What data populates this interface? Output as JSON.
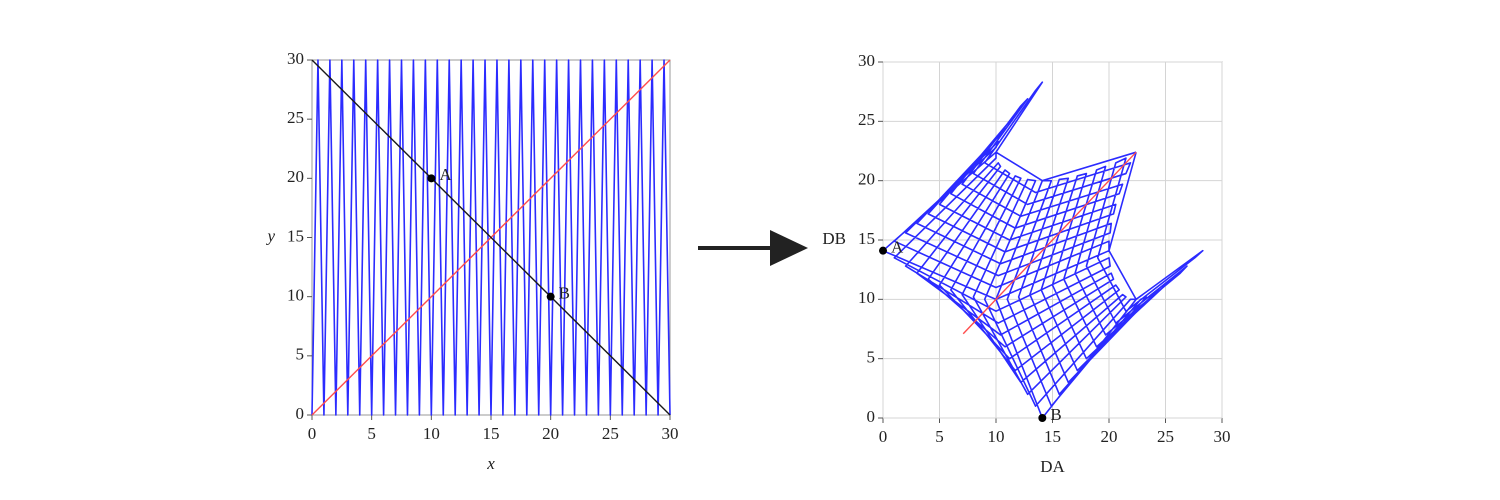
{
  "chart_data": [
    {
      "type": "line",
      "x_label": "x",
      "y_label": "y",
      "italic_labels": true,
      "xlim": [
        0,
        30
      ],
      "ylim": [
        0,
        30
      ],
      "xticks": [
        0,
        5,
        10,
        15,
        20,
        25,
        30
      ],
      "yticks": [
        0,
        5,
        10,
        15,
        20,
        25,
        30
      ],
      "grid": false,
      "series": [
        {
          "color": "#2b2bff",
          "x": [
            0,
            0.5,
            1,
            1.5,
            2,
            2.5,
            3,
            3.5,
            4,
            4.5,
            5,
            5.5,
            6,
            6.5,
            7,
            7.5,
            8,
            8.5,
            9,
            9.5,
            10,
            10.5,
            11,
            11.5,
            12,
            12.5,
            13,
            13.5,
            14,
            14.5,
            15,
            15.5,
            16,
            16.5,
            17,
            17.5,
            18,
            18.5,
            19,
            19.5,
            20,
            20.5,
            21,
            21.5,
            22,
            22.5,
            23,
            23.5,
            24,
            24.5,
            25,
            25.5,
            26,
            26.5,
            27,
            27.5,
            28,
            28.5,
            29,
            29.5,
            30
          ],
          "values": [
            0,
            30,
            0,
            30,
            0,
            30,
            0,
            30,
            0,
            30,
            0,
            30,
            0,
            30,
            0,
            30,
            0,
            30,
            0,
            30,
            0,
            30,
            0,
            30,
            0,
            30,
            0,
            30,
            0,
            30,
            0,
            30,
            0,
            30,
            0,
            30,
            0,
            30,
            0,
            30,
            0,
            30,
            0,
            30,
            0,
            30,
            0,
            30,
            0,
            30,
            0,
            30,
            0,
            30,
            0,
            30,
            0,
            30,
            0,
            30,
            0
          ]
        },
        {
          "color": "#ff4d4d",
          "x": [
            0,
            30
          ],
          "values": [
            0,
            30
          ]
        },
        {
          "color": "#1a1a1a",
          "x": [
            0,
            30
          ],
          "values": [
            30,
            0
          ]
        }
      ],
      "points": [
        {
          "label": "A",
          "x": 10,
          "y": 20
        },
        {
          "label": "B",
          "x": 20,
          "y": 10
        }
      ]
    },
    {
      "type": "line",
      "x_label": "DA",
      "y_label": "DB",
      "italic_labels": false,
      "xlim": [
        0,
        30
      ],
      "ylim": [
        0,
        30
      ],
      "xticks": [
        0,
        5,
        10,
        15,
        20,
        25,
        30
      ],
      "yticks": [
        0,
        5,
        10,
        15,
        20,
        25,
        30
      ],
      "grid": true,
      "series": [
        {
          "color": "#2b2bff",
          "x": [
            22.4,
            14.1,
            10,
            14.1,
            13.5,
            9,
            13.5,
            21.9,
            21.5,
            12.8,
            8,
            12.8,
            12.2,
            7,
            12.2,
            21.2,
            20.9,
            11.7,
            6,
            11.7,
            11.2,
            5,
            11.2,
            20.6,
            20.4,
            10.8,
            4,
            10.8,
            10.4,
            3,
            10.4,
            20.2,
            20.1,
            10.2,
            2,
            10.2,
            10,
            1,
            10,
            20,
            20,
            10,
            0,
            10,
            10,
            1,
            10,
            20,
            20.1,
            10.2,
            2,
            10.2,
            10.4,
            3,
            10.4,
            20.2,
            20.4,
            10.8,
            4,
            10.8,
            11.2,
            5,
            11.2,
            20.6,
            20.9,
            11.7,
            6,
            11.7,
            12.2,
            7,
            12.2,
            21.2,
            21.5,
            12.8,
            8,
            12.8,
            13.5,
            9,
            13.5,
            21.9,
            22.4,
            14.1,
            10,
            14.1,
            14.9,
            11,
            14.9,
            22.8,
            23.3,
            15.6,
            12,
            15.6,
            16.4,
            13,
            16.4,
            23.9,
            24.4,
            17.2,
            14,
            17.2,
            18,
            15,
            18,
            25,
            25.6,
            18.9,
            16,
            18.9,
            19.7,
            17,
            19.7,
            26.3,
            26.9,
            20.6,
            18,
            20.6,
            21.5,
            19,
            21.5,
            27.6,
            28.3,
            22.4,
            20,
            22.4
          ],
          "values": [
            22.4,
            20,
            22.4,
            28.3,
            27.6,
            21.5,
            19,
            21.5,
            20.6,
            18,
            20.6,
            26.9,
            26.3,
            19.7,
            17,
            19.7,
            18.9,
            16,
            18.9,
            25.6,
            25,
            18,
            15,
            18,
            17.2,
            14,
            17.2,
            24.4,
            23.9,
            16.4,
            13,
            16.4,
            15.6,
            12,
            15.6,
            23.3,
            22.8,
            14.9,
            11,
            14.9,
            14.1,
            10,
            14.1,
            22.4,
            21.9,
            13.5,
            9,
            13.5,
            12.8,
            8,
            12.8,
            21.5,
            21.2,
            12.2,
            7,
            12.2,
            11.7,
            6,
            11.7,
            20.9,
            20.6,
            11.2,
            5,
            11.2,
            10.8,
            4,
            10.8,
            20.4,
            20.2,
            10.4,
            3,
            10.4,
            10.2,
            2,
            10.2,
            20.1,
            20,
            10,
            1,
            10,
            10,
            0,
            10,
            20,
            20,
            10,
            1,
            10,
            10.2,
            2,
            10.2,
            20.1,
            20.2,
            10.4,
            3,
            10.4,
            10.8,
            4,
            10.8,
            20.4,
            20.6,
            11.2,
            5,
            11.2,
            11.7,
            6,
            11.7,
            20.9,
            21.2,
            12.2,
            7,
            12.2,
            12.8,
            8,
            12.8,
            21.5,
            21.9,
            13.5,
            9,
            13.5,
            14.1,
            10,
            14.1,
            22.4
          ]
        },
        {
          "color": "#ff4d4d",
          "x": [
            7.1,
            22.4
          ],
          "values": [
            7.1,
            22.4
          ]
        }
      ],
      "points": [
        {
          "label": "A",
          "x": 0,
          "y": 14.1
        },
        {
          "label": "B",
          "x": 14.1,
          "y": 0
        }
      ]
    }
  ]
}
